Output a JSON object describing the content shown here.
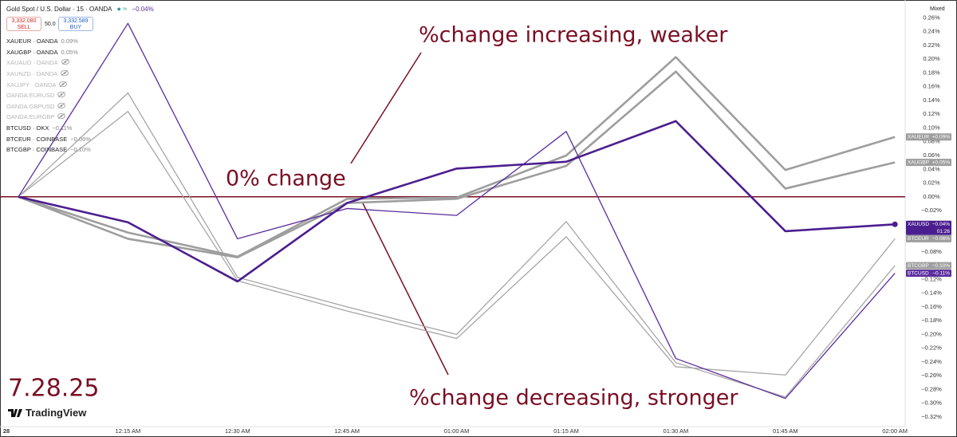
{
  "header": {
    "title": "Gold Spot / U.S. Dollar · 15 · OANDA",
    "change": "−0.04%",
    "sell_price": "3,332.080",
    "sell": "SELL",
    "spread": "50.0",
    "buy_price": "3,332.589",
    "buy": "BUY",
    "symbols": [
      {
        "name": "XAUEUR · OANDA",
        "change": "0.09%",
        "hidden": false
      },
      {
        "name": "XAUGBP · OANDA",
        "change": "0.05%",
        "hidden": false
      },
      {
        "name": "XAUAUD · OANDA",
        "hidden": true
      },
      {
        "name": "XAUNZD · OANDA",
        "hidden": true
      },
      {
        "name": "XAUJPY · OANDA",
        "hidden": true
      },
      {
        "name": "OANDA:EURUSD",
        "hidden": true
      },
      {
        "name": "OANDA:GBPUSD",
        "hidden": true
      },
      {
        "name": "OANDA:EURGBP",
        "hidden": true
      },
      {
        "name": "BTCUSD · OKX",
        "change": "−0.11%",
        "hidden": false
      },
      {
        "name": "BTCEUR · COINBASE",
        "change": "−0.06%",
        "hidden": false
      },
      {
        "name": "BTCGBP · COINBASE",
        "change": "−0.10%",
        "hidden": false
      }
    ],
    "scale_mode": "Mixed",
    "brand": "TradingView"
  },
  "chart_data": {
    "type": "line",
    "annotations": [
      "%change increasing, weaker",
      "0% change",
      "%change decreasing, stronger",
      "7.28.25"
    ],
    "categories": [
      "28",
      "12:15 AM",
      "12:30 AM",
      "12:45 AM",
      "01:00 AM",
      "01:15 AM",
      "01:30 AM",
      "01:45 AM",
      "02:00 AM"
    ],
    "series": [
      {
        "name": "XAUUSD",
        "color": "#4b1e8f",
        "width": 2.6,
        "values": [
          0,
          -0.037,
          -0.123,
          -0.009,
          0.041,
          0.051,
          0.11,
          -0.05,
          -0.04
        ],
        "value_labels": [
          null,
          null,
          null,
          null,
          null,
          null,
          null,
          null,
          "−0.04%"
        ],
        "countdown": "01:26"
      },
      {
        "name": "XAUEUR",
        "color": "#9e9e9e",
        "width": 2.6,
        "values": [
          0,
          -0.052,
          -0.087,
          -0.003,
          -0.001,
          0.06,
          0.203,
          0.039,
          0.087
        ],
        "value_labels": [
          null,
          null,
          null,
          null,
          null,
          null,
          null,
          null,
          "+0.09%"
        ]
      },
      {
        "name": "XAUGBP",
        "color": "#9e9e9e",
        "width": 2.6,
        "values": [
          0,
          -0.061,
          -0.088,
          -0.009,
          -0.003,
          0.045,
          0.182,
          0.012,
          0.05
        ],
        "value_labels": [
          null,
          null,
          null,
          null,
          null,
          null,
          null,
          null,
          "+0.05%"
        ]
      },
      {
        "name": "BTCUSD",
        "color": "#5b2d9e",
        "width": 1.3,
        "values": [
          0,
          0.252,
          -0.061,
          -0.017,
          -0.027,
          0.095,
          -0.235,
          -0.293,
          -0.111
        ],
        "value_labels": [
          null,
          null,
          null,
          null,
          null,
          null,
          null,
          null,
          "−0.11%"
        ]
      },
      {
        "name": "BTCEUR",
        "color": "#a6a6a6",
        "width": 1.3,
        "values": [
          0,
          0.124,
          -0.122,
          -0.166,
          -0.206,
          -0.058,
          -0.247,
          -0.259,
          -0.061
        ],
        "value_labels": [
          null,
          null,
          null,
          null,
          null,
          null,
          null,
          null,
          "−0.06%"
        ]
      },
      {
        "name": "BTCGBP",
        "color": "#a6a6a6",
        "width": 1.3,
        "values": [
          0,
          0.151,
          -0.117,
          -0.16,
          -0.2,
          -0.036,
          -0.241,
          -0.291,
          -0.1
        ],
        "value_labels": [
          null,
          null,
          null,
          null,
          null,
          null,
          null,
          null,
          "−0.10%"
        ]
      }
    ],
    "ylim": [
      -0.334,
      0.286
    ],
    "yticks": [
      {
        "value": 0.26,
        "label": "0.26%"
      },
      {
        "value": 0.24,
        "label": "0.24%"
      },
      {
        "value": 0.22,
        "label": "0.22%"
      },
      {
        "value": 0.2,
        "label": "0.20%"
      },
      {
        "value": 0.18,
        "label": "0.18%"
      },
      {
        "value": 0.16,
        "label": "0.16%"
      },
      {
        "value": 0.14,
        "label": "0.14%"
      },
      {
        "value": 0.12,
        "label": "0.12%"
      },
      {
        "value": 0.1,
        "label": "0.10%"
      },
      {
        "value": 0.08,
        "label": "0.08%"
      },
      {
        "value": 0.06,
        "label": "0.06%"
      },
      {
        "value": 0.04,
        "label": "0.04%"
      },
      {
        "value": 0.02,
        "label": "0.02%"
      },
      {
        "value": 0,
        "label": "0.00%"
      },
      {
        "value": -0.02,
        "label": "−0.02%"
      },
      {
        "value": -0.04,
        "label": "−0.04%"
      },
      {
        "value": -0.06,
        "label": "−0.06%"
      },
      {
        "value": -0.08,
        "label": "−0.08%"
      },
      {
        "value": -0.1,
        "label": "−0.10%"
      },
      {
        "value": -0.12,
        "label": "−0.12%"
      },
      {
        "value": -0.14,
        "label": "−0.14%"
      },
      {
        "value": -0.16,
        "label": "−0.16%"
      },
      {
        "value": -0.18,
        "label": "−0.18%"
      },
      {
        "value": -0.2,
        "label": "−0.20%"
      },
      {
        "value": -0.22,
        "label": "−0.22%"
      },
      {
        "value": -0.24,
        "label": "−0.24%"
      },
      {
        "value": -0.26,
        "label": "−0.26%"
      },
      {
        "value": -0.28,
        "label": "−0.28%"
      },
      {
        "value": -0.3,
        "label": "−0.30%"
      },
      {
        "value": -0.32,
        "label": "−0.32%"
      }
    ],
    "grid": false
  }
}
